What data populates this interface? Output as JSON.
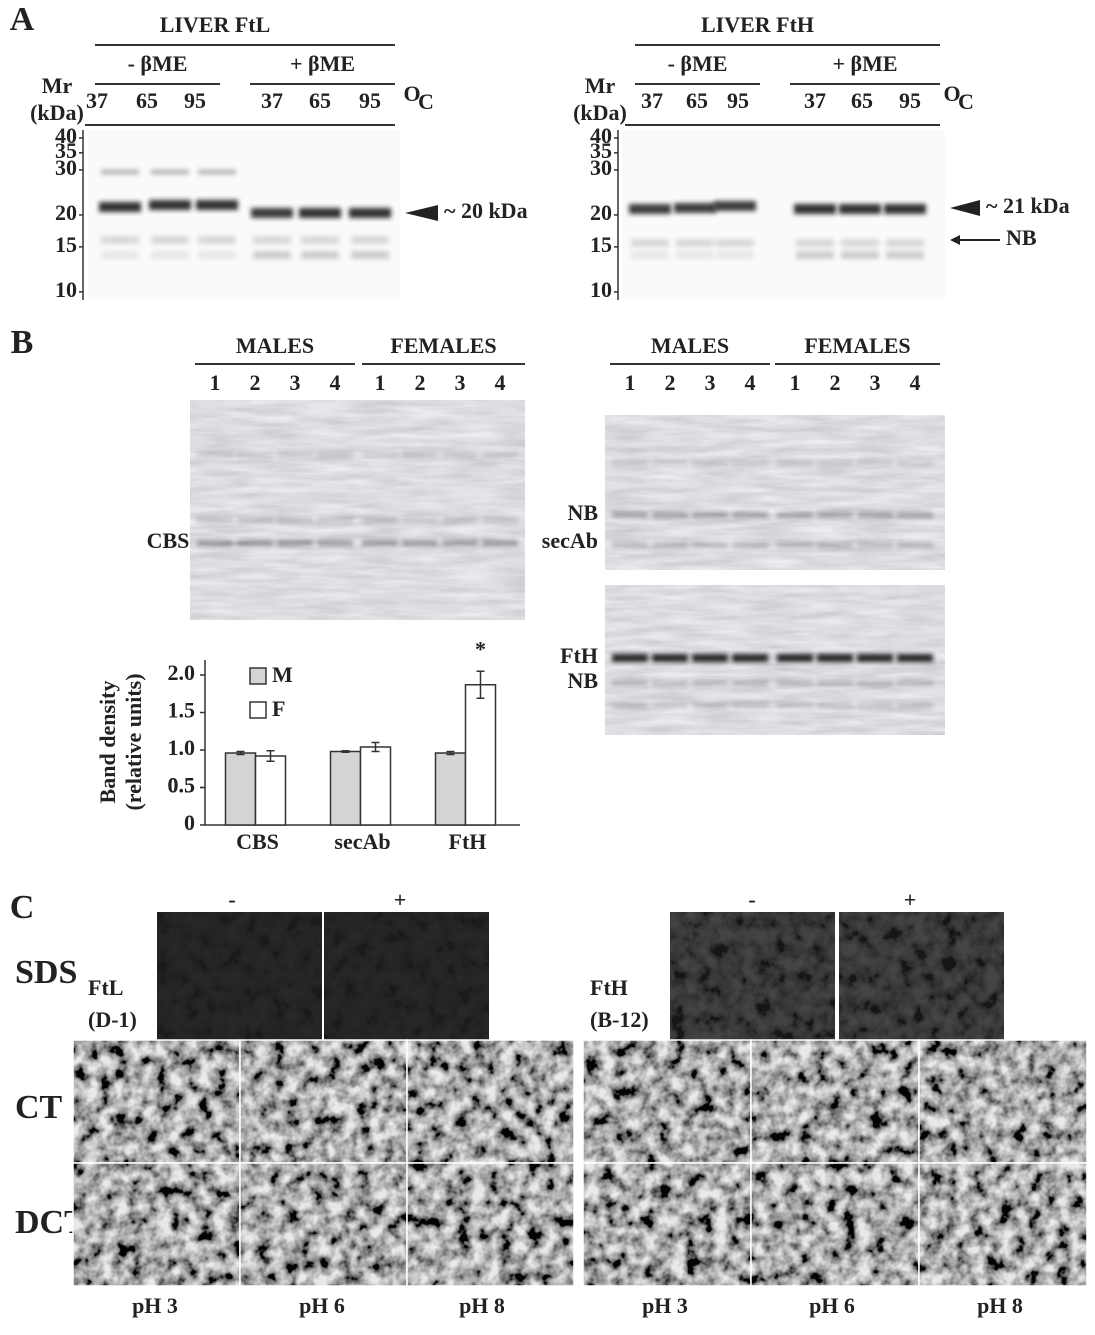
{
  "panel_a": {
    "label": "A",
    "blots": [
      {
        "title": "LIVER FtL",
        "groups": [
          "- βME",
          "+ βME"
        ],
        "mr_label": [
          "Mr",
          "(kDa)"
        ],
        "temperatures": [
          "37",
          "65",
          "95",
          "37",
          "65",
          "95"
        ],
        "unit_sup": "O",
        "unit": "C",
        "markers": [
          40,
          35,
          30,
          20,
          15,
          10
        ],
        "annotations": [
          "~ 20 kDa"
        ]
      },
      {
        "title": "LIVER FtH",
        "groups": [
          "- βME",
          "+ βME"
        ],
        "mr_label": [
          "Mr",
          "(kDa)"
        ],
        "temperatures": [
          "37",
          "65",
          "95",
          "37",
          "65",
          "95"
        ],
        "unit_sup": "O",
        "unit": "C",
        "markers": [
          40,
          35,
          30,
          20,
          15,
          10
        ],
        "annotations": [
          "~ 21 kDa",
          "NB"
        ]
      }
    ]
  },
  "panel_b": {
    "label": "B",
    "blots": [
      {
        "groups": [
          "MALES",
          "FEMALES"
        ],
        "lanes": [
          "1",
          "2",
          "3",
          "4",
          "1",
          "2",
          "3",
          "4"
        ],
        "band_labels": [
          "CBS"
        ]
      },
      {
        "groups": [
          "MALES",
          "FEMALES"
        ],
        "lanes": [
          "1",
          "2",
          "3",
          "4",
          "1",
          "2",
          "3",
          "4"
        ],
        "band_labels": [
          "NB",
          "secAb",
          "FtH",
          "NB"
        ]
      }
    ]
  },
  "chart_data": {
    "type": "bar",
    "ylabel": [
      "Band density",
      "(relative units)"
    ],
    "categories": [
      "CBS",
      "secAb",
      "FtH"
    ],
    "series": [
      {
        "name": "M",
        "color": "#d4d4d4",
        "values": [
          0.96,
          0.98,
          0.96
        ],
        "errors": [
          0.02,
          0.01,
          0.02
        ]
      },
      {
        "name": "F",
        "color": "#ffffff",
        "values": [
          0.92,
          1.04,
          1.87
        ],
        "errors": [
          0.07,
          0.06,
          0.18
        ]
      }
    ],
    "ylim": [
      0,
      2.2
    ],
    "yticks": [
      0,
      0.5,
      {
        "value": 1,
        "label": "1.0"
      },
      0.5,
      {
        "value": 1.5,
        "label": "1.5"
      },
      {
        "value": 2,
        "label": "2.0"
      }
    ],
    "annotation": "*"
  },
  "panel_c": {
    "label": "C",
    "row_labels": [
      "SDS",
      "CT",
      "DCT"
    ],
    "sets": [
      {
        "antibody": [
          "FtL",
          "(D-1)"
        ],
        "treatments": [
          "-",
          "+"
        ],
        "ph": [
          "pH 3",
          "pH 6",
          "pH 8"
        ]
      },
      {
        "antibody": [
          "FtH",
          "(B-12)"
        ],
        "treatments": [
          "-",
          "+"
        ],
        "ph": [
          "pH 3",
          "pH 6",
          "pH 8"
        ]
      }
    ]
  }
}
